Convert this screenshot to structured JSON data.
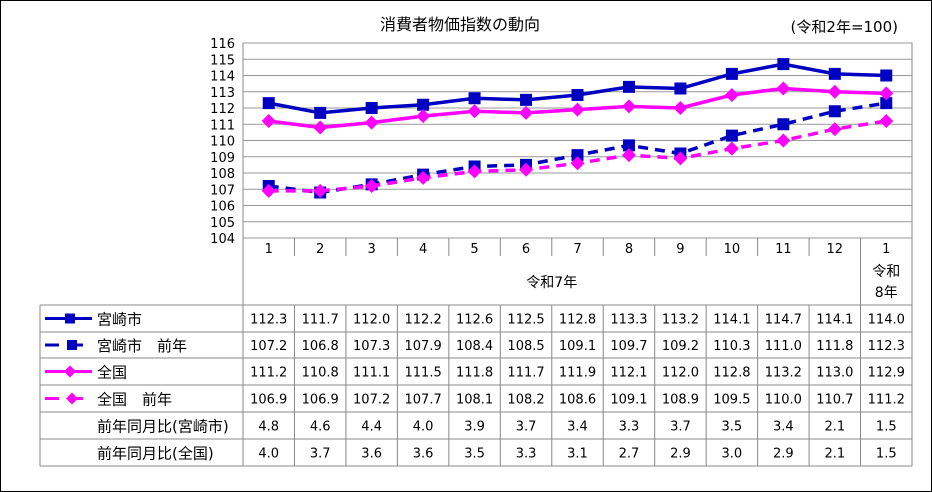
{
  "chart_data": {
    "type": "line",
    "title": "消費者物価指数の動向",
    "subtitle": "(令和2年=100)",
    "categories": [
      "1",
      "2",
      "3",
      "4",
      "5",
      "6",
      "7",
      "8",
      "9",
      "10",
      "11",
      "12",
      "1"
    ],
    "year_labels": [
      {
        "label": "令和7年"
      },
      {
        "label_line1": "令和",
        "label_line2": "8年"
      }
    ],
    "ylim": [
      104,
      116
    ],
    "yticks": [
      "104",
      "105",
      "106",
      "107",
      "108",
      "109",
      "110",
      "111",
      "112",
      "113",
      "114",
      "115",
      "116"
    ],
    "grid": true,
    "legend": "table-left",
    "series": [
      {
        "name": "宮崎市",
        "color": "#0000C0",
        "dashed": false,
        "marker": "square",
        "values": [
          112.3,
          111.7,
          112.0,
          112.2,
          112.6,
          112.5,
          112.8,
          113.3,
          113.2,
          114.1,
          114.7,
          114.1,
          114.0
        ],
        "labels": [
          "112.3",
          "111.7",
          "112.0",
          "112.2",
          "112.6",
          "112.5",
          "112.8",
          "113.3",
          "113.2",
          "114.1",
          "114.7",
          "114.1",
          "114.0"
        ]
      },
      {
        "name": "宮崎市　前年",
        "color": "#0000C0",
        "dashed": true,
        "marker": "square",
        "values": [
          107.2,
          106.8,
          107.3,
          107.9,
          108.4,
          108.5,
          109.1,
          109.7,
          109.2,
          110.3,
          111.0,
          111.8,
          112.3
        ],
        "labels": [
          "107.2",
          "106.8",
          "107.3",
          "107.9",
          "108.4",
          "108.5",
          "109.1",
          "109.7",
          "109.2",
          "110.3",
          "111.0",
          "111.8",
          "112.3"
        ]
      },
      {
        "name": "全国",
        "color": "#FF00FF",
        "dashed": false,
        "marker": "diamond",
        "values": [
          111.2,
          110.8,
          111.1,
          111.5,
          111.8,
          111.7,
          111.9,
          112.1,
          112.0,
          112.8,
          113.2,
          113.0,
          112.9
        ],
        "labels": [
          "111.2",
          "110.8",
          "111.1",
          "111.5",
          "111.8",
          "111.7",
          "111.9",
          "112.1",
          "112.0",
          "112.8",
          "113.2",
          "113.0",
          "112.9"
        ]
      },
      {
        "name": "全国　前年",
        "color": "#FF00FF",
        "dashed": true,
        "marker": "diamond",
        "values": [
          106.9,
          106.9,
          107.2,
          107.7,
          108.1,
          108.2,
          108.6,
          109.1,
          108.9,
          109.5,
          110.0,
          110.7,
          111.2
        ],
        "labels": [
          "106.9",
          "106.9",
          "107.2",
          "107.7",
          "108.1",
          "108.2",
          "108.6",
          "109.1",
          "108.9",
          "109.5",
          "110.0",
          "110.7",
          "111.2"
        ]
      }
    ],
    "extra_rows": [
      {
        "name": "前年同月比(宮崎市)",
        "labels": [
          "4.8",
          "4.6",
          "4.4",
          "4.0",
          "3.9",
          "3.7",
          "3.4",
          "3.3",
          "3.7",
          "3.5",
          "3.4",
          "2.1",
          "1.5"
        ]
      },
      {
        "name": "前年同月比(全国)",
        "labels": [
          "4.0",
          "3.7",
          "3.6",
          "3.6",
          "3.5",
          "3.3",
          "3.1",
          "2.7",
          "2.9",
          "3.0",
          "2.9",
          "2.1",
          "1.5"
        ]
      }
    ]
  }
}
